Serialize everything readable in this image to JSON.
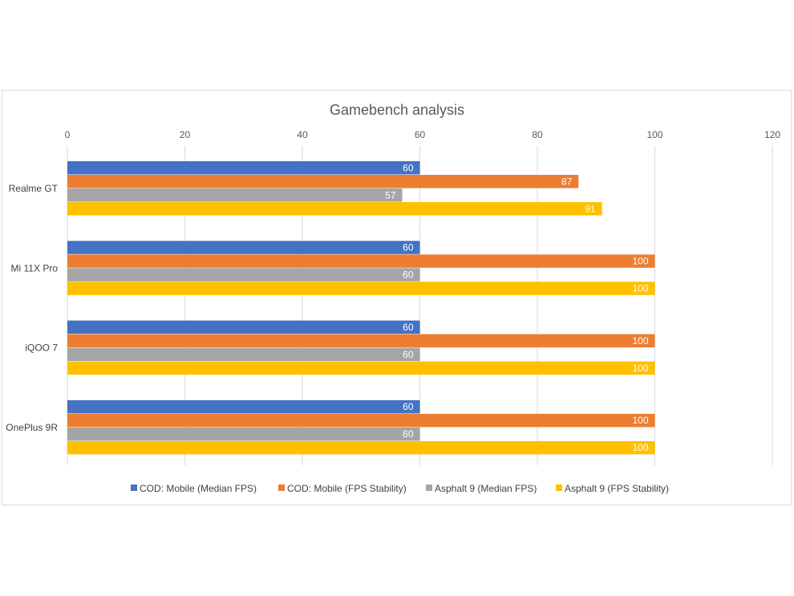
{
  "chart_data": {
    "type": "bar",
    "orientation": "horizontal",
    "title": "Gamebench analysis",
    "xlabel": "",
    "ylabel": "",
    "xlim": [
      0,
      120
    ],
    "x_ticks": [
      0,
      20,
      40,
      60,
      80,
      100,
      120
    ],
    "x_axis_position": "top",
    "grid": true,
    "legend_position": "bottom",
    "categories": [
      "Realme GT",
      "Mi 11X Pro",
      "iQOO 7",
      "OnePlus 9R"
    ],
    "series": [
      {
        "name": "COD: Mobile (Median FPS)",
        "color": "#4472C4",
        "values": [
          60,
          60,
          60,
          60
        ]
      },
      {
        "name": "COD: Mobile (FPS Stability)",
        "color": "#ED7D31",
        "values": [
          87,
          100,
          100,
          100
        ]
      },
      {
        "name": "Asphalt 9 (Median FPS)",
        "color": "#A5A5A5",
        "values": [
          57,
          60,
          60,
          60
        ]
      },
      {
        "name": "Asphalt 9 (FPS Stability)",
        "color": "#FFC000",
        "values": [
          91,
          100,
          100,
          100
        ]
      }
    ]
  }
}
